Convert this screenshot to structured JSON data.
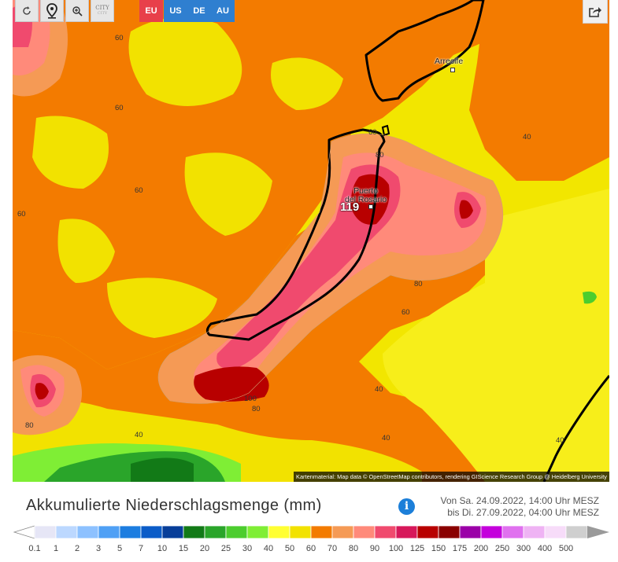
{
  "toolbar": {
    "reload_icon": "reload-icon",
    "locate_icon": "location-pin-icon",
    "zoom_icon": "zoom-in-icon",
    "city_label": "CITY",
    "regions": [
      "EU",
      "US",
      "DE",
      "AU"
    ],
    "region_color": "#2f7fd0",
    "region_active_color": "#e8404a",
    "share_icon": "share-icon"
  },
  "map": {
    "cities": [
      {
        "name": "Arrecife"
      },
      {
        "name": "Puerto\ndel Rosario"
      }
    ],
    "max_value": "119",
    "contour_labels": [
      "60",
      "60",
      "60",
      "60",
      "60",
      "40",
      "60",
      "80",
      "80",
      "60",
      "100",
      "80",
      "80",
      "40",
      "40",
      "40",
      "40",
      "40"
    ],
    "attribution": "Kartenmaterial: Map data © OpenStreetMap contributors, rendering GIScience Research Group @ Heidelberg University"
  },
  "header": {
    "title": "Akkumulierte Niederschlagsmenge (mm)",
    "info_icon": "info-icon",
    "info_glyph": "i",
    "period_from": "Von Sa. 24.09.2022, 14:00 Uhr MESZ",
    "period_to": "bis Di. 27.09.2022, 04:00 Uhr MESZ"
  },
  "legend": {
    "ticks": [
      "0.1",
      "1",
      "2",
      "3",
      "5",
      "7",
      "10",
      "15",
      "20",
      "25",
      "30",
      "40",
      "50",
      "60",
      "70",
      "80",
      "90",
      "100",
      "125",
      "150",
      "175",
      "200",
      "250",
      "300",
      "400",
      "500"
    ],
    "colors": [
      "#e6e6f6",
      "#bcd8ff",
      "#8dc1ff",
      "#4fa0f5",
      "#1c7de0",
      "#0b5cc8",
      "#073e99",
      "#127a17",
      "#2aa52a",
      "#4ccd2e",
      "#7fee35",
      "#ffff33",
      "#f2e200",
      "#f37b00",
      "#f59a55",
      "#ff8a7a",
      "#f04a6e",
      "#d7185a",
      "#b80000",
      "#8a0000",
      "#9b00a8",
      "#c400dc",
      "#e071ef",
      "#efb3f4",
      "#f7dcf9",
      "#cfcfcf"
    ]
  }
}
